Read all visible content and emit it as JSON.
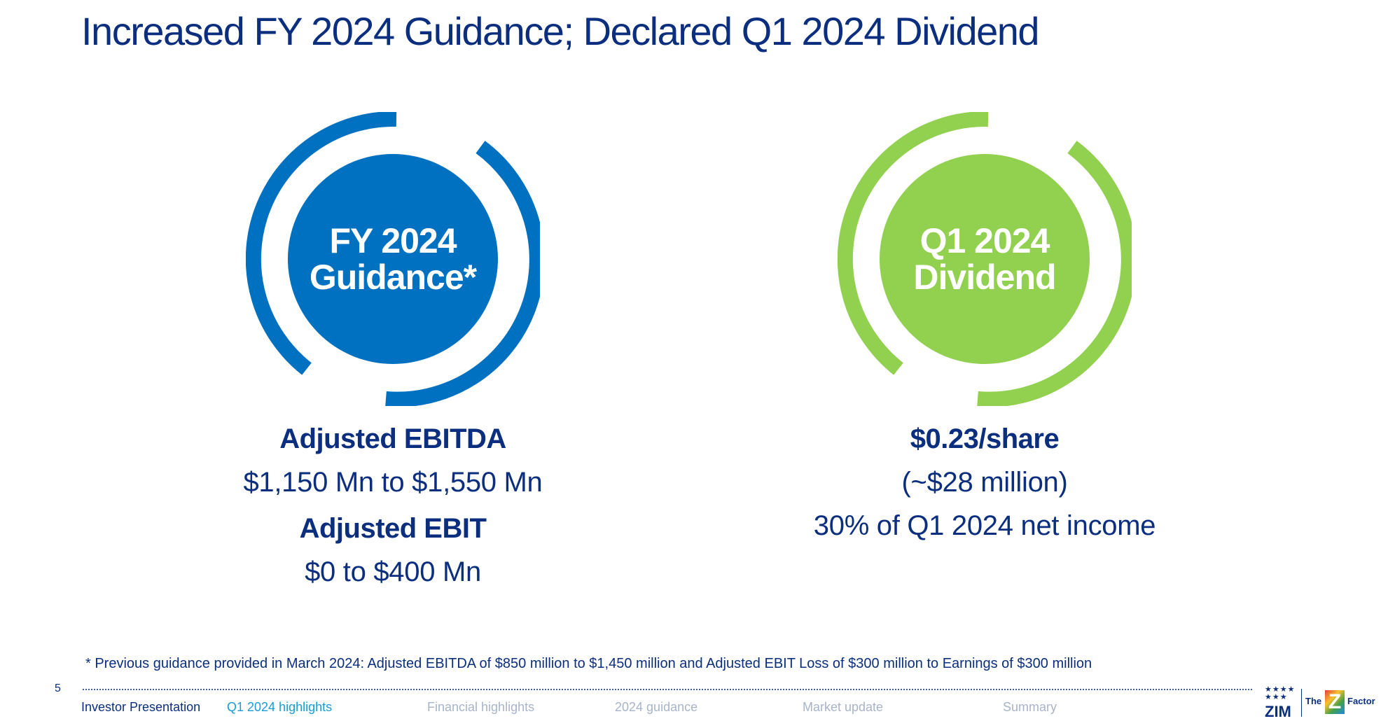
{
  "title": "Increased FY 2024 Guidance; Declared Q1 2024 Dividend",
  "colors": {
    "primary": "#0b2f7e",
    "guidance_ring": "#0070c0",
    "dividend_ring": "#92d050",
    "active_nav": "#1a9bd7"
  },
  "guidance": {
    "badge_line1": "FY 2024",
    "badge_line2": "Guidance*",
    "ebitda_label": "Adjusted EBITDA",
    "ebitda_value": "$1,150 Mn to $1,550 Mn",
    "ebit_label": "Adjusted EBIT",
    "ebit_value": "$0 to $400 Mn"
  },
  "dividend": {
    "badge_line1": "Q1 2024",
    "badge_line2": "Dividend",
    "per_share": "$0.23/share",
    "total": "(~$28 million)",
    "payout": "30% of Q1 2024 net income"
  },
  "footnote": "* Previous guidance provided in March 2024: Adjusted EBITDA of $850 million to $1,450 million and Adjusted EBIT Loss of $300 million to Earnings of $300 million",
  "page_number": "5",
  "footer": {
    "deck": "Investor Presentation",
    "sections": [
      "Q1 2024 highlights",
      "Financial highlights",
      "2024 guidance",
      "Market update",
      "Summary"
    ],
    "active_section": "Q1 2024 highlights"
  },
  "logo": {
    "stars": "★★★★\n★★★",
    "brand": "ZIM",
    "the": "The",
    "z": "Z",
    "factor": "Factor"
  }
}
